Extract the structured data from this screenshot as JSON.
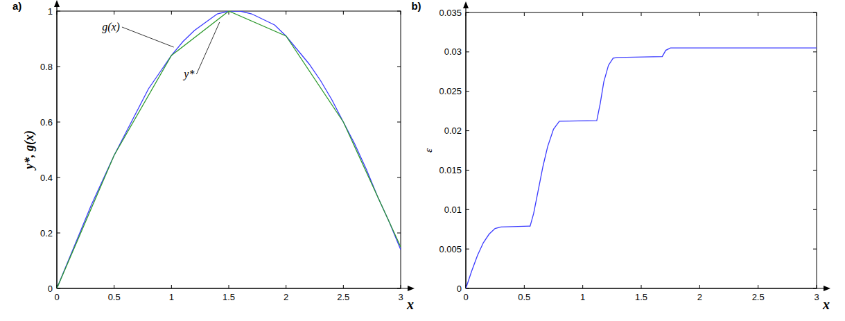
{
  "chart_data": [
    {
      "type": "line",
      "title": "a)",
      "x_label": "x",
      "y_label": "y*, g(x)",
      "xlim": [
        0,
        3
      ],
      "xticks": [
        0,
        0.5,
        1,
        1.5,
        2,
        2.5,
        3
      ],
      "ylim": [
        0,
        1
      ],
      "yticks": [
        0,
        0.2,
        0.4,
        0.6,
        0.8,
        1
      ],
      "grid": false,
      "series": [
        {
          "name": "g(x)",
          "color": "#3a3aff",
          "x": [
            0,
            0.1,
            0.2,
            0.3,
            0.4,
            0.5,
            0.6,
            0.7,
            0.8,
            0.9,
            1,
            1.1,
            1.2,
            1.3,
            1.4,
            1.5,
            1.6,
            1.7,
            1.8,
            1.9,
            2,
            2.1,
            2.2,
            2.3,
            2.4,
            2.5,
            2.6,
            2.7,
            2.8,
            2.9,
            3
          ],
          "values": [
            0,
            0.1,
            0.2,
            0.3,
            0.39,
            0.48,
            0.56,
            0.64,
            0.72,
            0.78,
            0.84,
            0.89,
            0.93,
            0.96,
            0.99,
            1.0,
            1.0,
            0.99,
            0.97,
            0.95,
            0.91,
            0.86,
            0.81,
            0.75,
            0.68,
            0.6,
            0.52,
            0.43,
            0.33,
            0.24,
            0.14
          ]
        },
        {
          "name": "y*",
          "color": "#2f9a2f",
          "x": [
            0,
            0.5,
            1,
            1.5,
            2,
            2.5,
            3
          ],
          "values": [
            0,
            0.48,
            0.84,
            1.0,
            0.91,
            0.6,
            0.15
          ]
        }
      ]
    },
    {
      "type": "line",
      "title": "b)",
      "x_label": "x",
      "y_label": "ε",
      "xlim": [
        0,
        3
      ],
      "xticks": [
        0,
        0.5,
        1,
        1.5,
        2,
        2.5,
        3
      ],
      "ylim": [
        0,
        0.035
      ],
      "yticks": [
        0,
        0.005,
        0.01,
        0.015,
        0.02,
        0.025,
        0.03,
        0.035
      ],
      "grid": false,
      "series": [
        {
          "name": "ε",
          "color": "#3a3aff",
          "x": [
            0,
            0.05,
            0.1,
            0.15,
            0.2,
            0.25,
            0.3,
            0.55,
            0.58,
            0.62,
            0.66,
            0.7,
            0.75,
            0.8,
            1.12,
            1.15,
            1.18,
            1.22,
            1.26,
            1.3,
            1.68,
            1.71,
            1.75,
            3
          ],
          "values": [
            0,
            0.0022,
            0.0042,
            0.0058,
            0.0069,
            0.0076,
            0.0078,
            0.0079,
            0.0095,
            0.0125,
            0.0155,
            0.018,
            0.0202,
            0.0212,
            0.0213,
            0.0235,
            0.0262,
            0.0283,
            0.0292,
            0.0293,
            0.0294,
            0.0302,
            0.0305,
            0.0305
          ]
        }
      ]
    }
  ]
}
